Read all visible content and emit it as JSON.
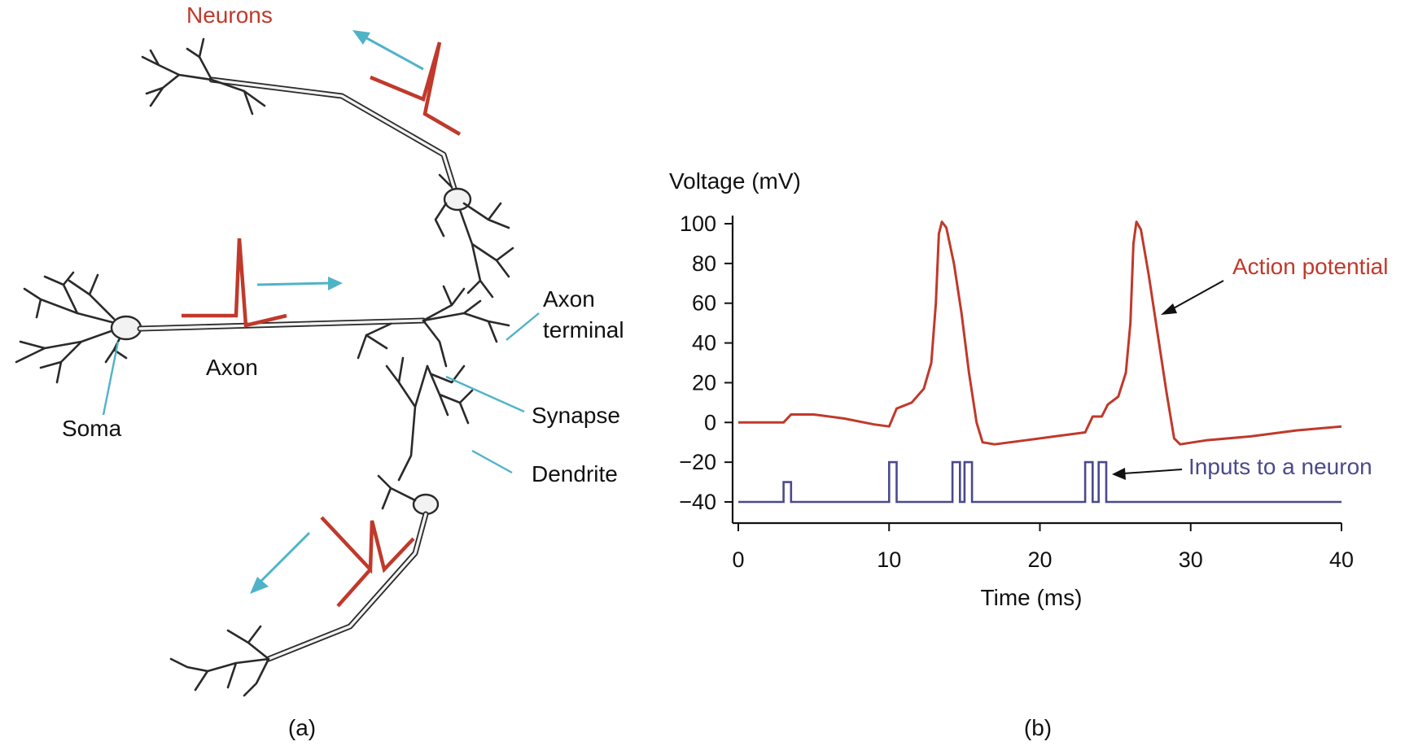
{
  "panel_a": {
    "label": "(a)",
    "neurons_label": "Neurons",
    "labels": {
      "axon_terminal_line1": "Axon",
      "axon_terminal_line2": "terminal",
      "synapse": "Synapse",
      "dendrite": "Dendrite",
      "axon": "Axon",
      "soma": "Soma"
    }
  },
  "panel_b": {
    "label": "(b)",
    "annotations": {
      "action_potential": "Action potential",
      "inputs": "Inputs to a neuron"
    }
  },
  "chart_data": {
    "type": "line",
    "ylabel": "Voltage (mV)",
    "xlabel": "Time (ms)",
    "xlim": [
      0,
      40
    ],
    "ylim": [
      -40,
      100
    ],
    "xticks": [
      0,
      10,
      20,
      30,
      40
    ],
    "yticks": [
      100,
      80,
      60,
      40,
      20,
      0,
      -20,
      -40
    ],
    "ytick_labels": [
      "100",
      "80",
      "60",
      "40",
      "20",
      "0",
      "−20",
      "−40"
    ],
    "series": [
      {
        "name": "Action potential",
        "color": "#c0392b",
        "x": [
          0,
          3.0,
          3.5,
          5,
          7,
          9,
          10.0,
          10.5,
          11.5,
          12.3,
          12.8,
          13.1,
          13.3,
          13.5,
          13.8,
          14.3,
          14.8,
          15.3,
          15.8,
          16.2,
          17,
          19,
          21,
          23.0,
          23.5,
          24.1,
          24.5,
          25.2,
          25.7,
          26.0,
          26.2,
          26.4,
          26.7,
          27.2,
          27.8,
          28.4,
          28.9,
          29.3,
          31,
          34,
          37,
          40
        ],
        "y": [
          0,
          0,
          4,
          4,
          2,
          -1,
          -2,
          7,
          10,
          17,
          30,
          60,
          95,
          101,
          98,
          80,
          55,
          25,
          0,
          -10,
          -11,
          -9,
          -7,
          -5,
          3,
          3,
          9,
          13,
          25,
          50,
          90,
          101,
          97,
          75,
          45,
          15,
          -8,
          -11,
          -9,
          -7,
          -4,
          -2
        ]
      },
      {
        "name": "Inputs to a neuron",
        "color": "#4a4a8c",
        "base": -40,
        "pulse_level": -20,
        "pulses": [
          {
            "start": 3.0,
            "end": 3.5,
            "level": -30
          },
          {
            "start": 10.0,
            "end": 10.5,
            "level": -20
          },
          {
            "start": 14.2,
            "end": 14.7,
            "level": -20
          },
          {
            "start": 15.0,
            "end": 15.5,
            "level": -20
          },
          {
            "start": 23.0,
            "end": 23.5,
            "level": -20
          },
          {
            "start": 23.9,
            "end": 24.4,
            "level": -20
          }
        ]
      }
    ]
  },
  "colors": {
    "spike_red": "#c0392b",
    "input_blue": "#4a4a8c",
    "arrow_cyan": "#4fb3c8"
  }
}
